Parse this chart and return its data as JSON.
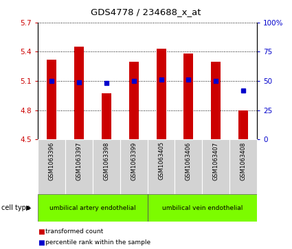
{
  "title": "GDS4778 / 234688_x_at",
  "samples": [
    "GSM1063396",
    "GSM1063397",
    "GSM1063398",
    "GSM1063399",
    "GSM1063405",
    "GSM1063406",
    "GSM1063407",
    "GSM1063408"
  ],
  "red_values": [
    5.32,
    5.45,
    4.97,
    5.3,
    5.43,
    5.38,
    5.3,
    4.8
  ],
  "blue_values_pct": [
    50,
    49,
    48,
    50,
    51,
    51,
    50,
    42
  ],
  "ylim_left": [
    4.5,
    5.7
  ],
  "ylim_right": [
    0,
    100
  ],
  "yticks_left": [
    4.5,
    4.8,
    5.1,
    5.4,
    5.7
  ],
  "yticks_right": [
    0,
    25,
    50,
    75,
    100
  ],
  "ytick_labels_left": [
    "4.5",
    "4.8",
    "5.1",
    "5.4",
    "5.7"
  ],
  "ytick_labels_right": [
    "0",
    "25",
    "50",
    "75",
    "100%"
  ],
  "bar_bottom": 4.5,
  "bar_color": "#cc0000",
  "dot_color": "#0000cc",
  "cell_types": [
    "umbilical artery endothelial",
    "umbilical vein endothelial"
  ],
  "legend_items": [
    "transformed count",
    "percentile rank within the sample"
  ]
}
